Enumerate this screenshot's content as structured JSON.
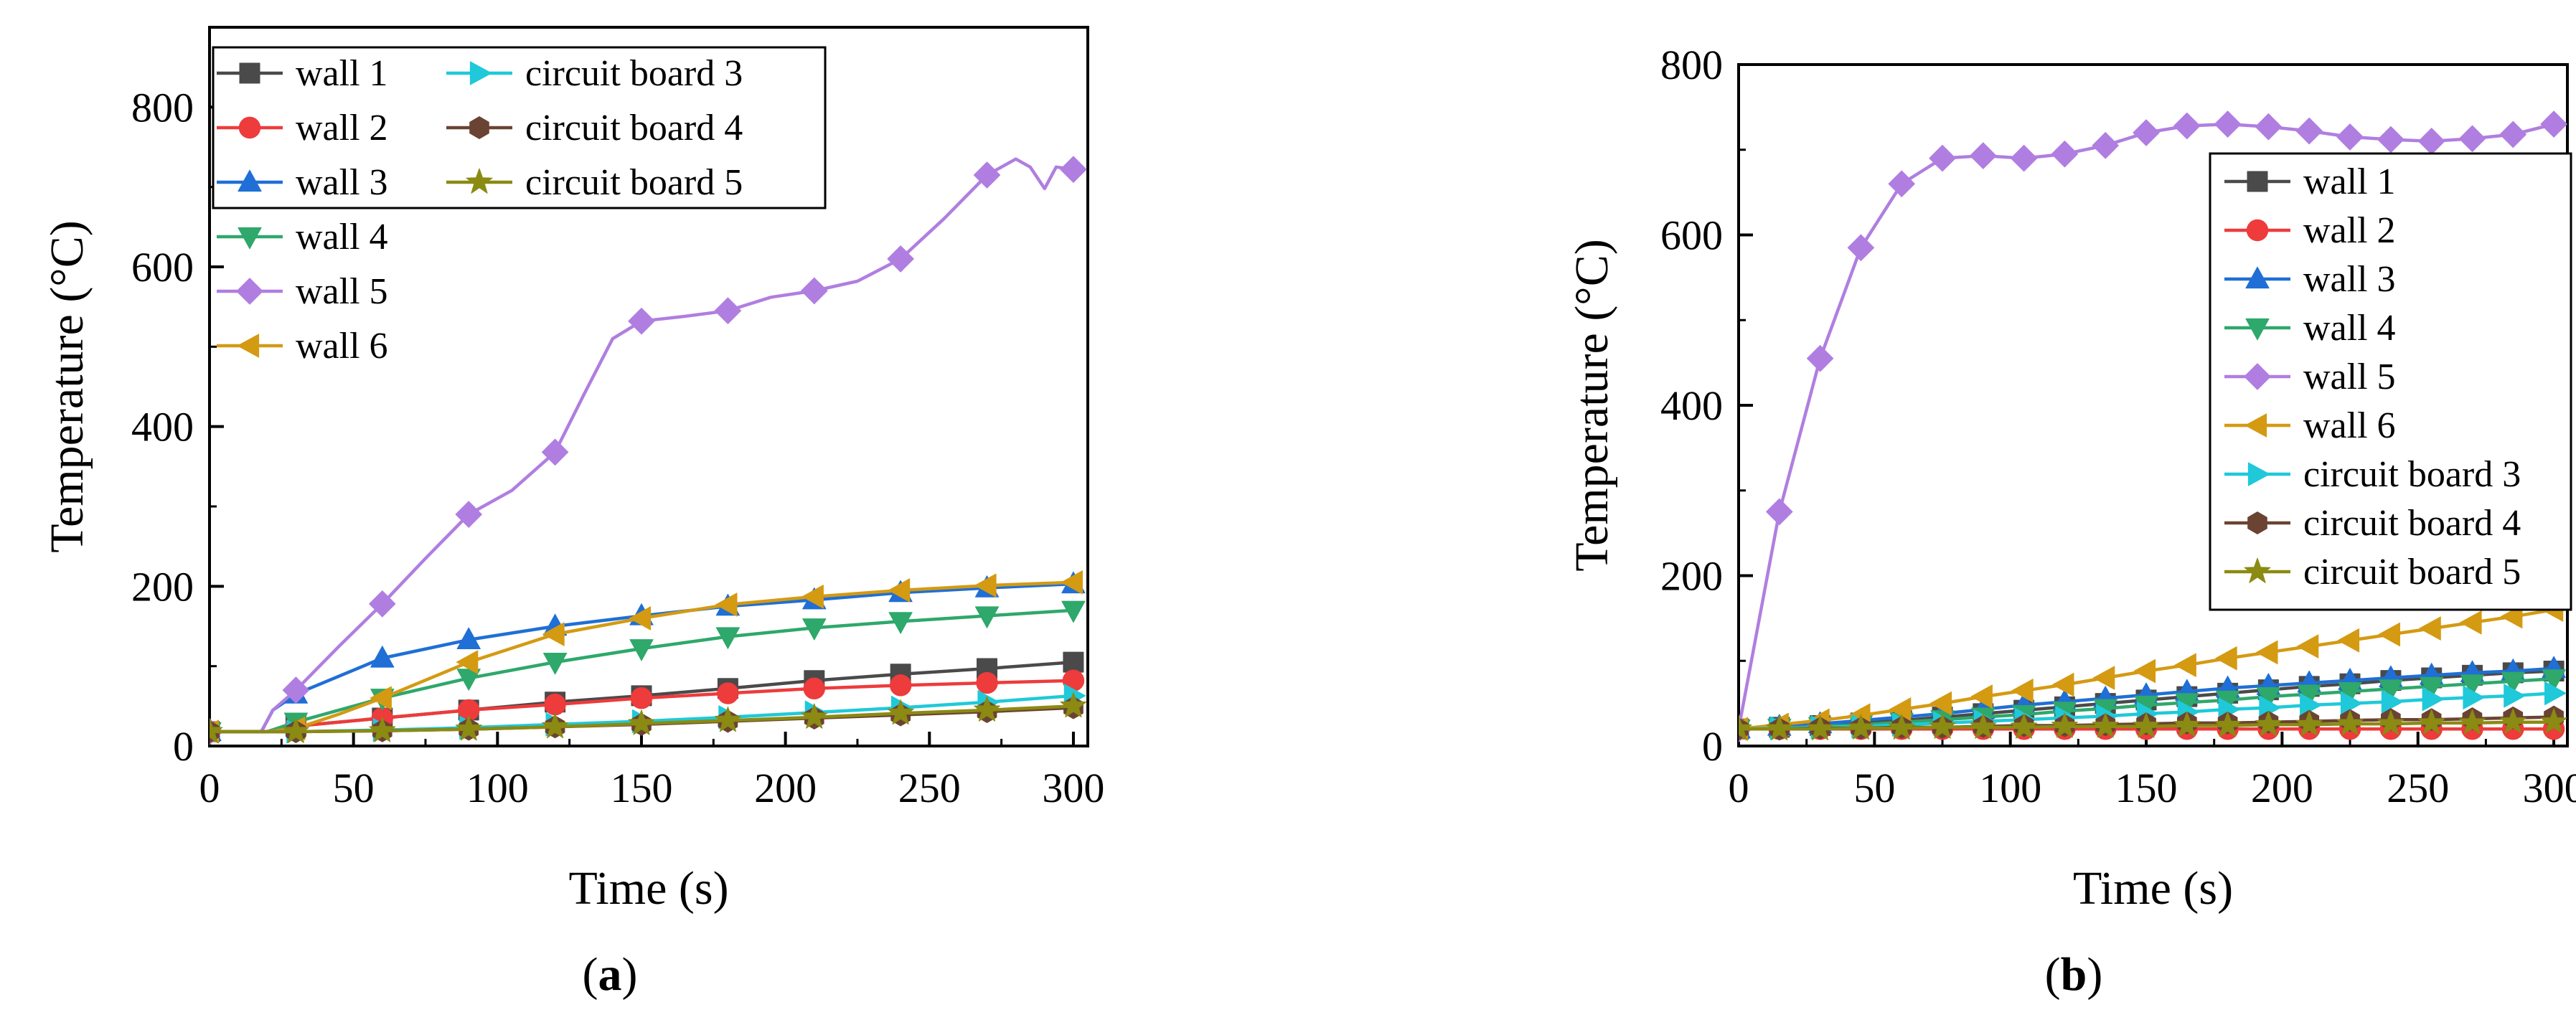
{
  "colors": {
    "wall1": "#4a4a4a",
    "wall2": "#ee3b3b",
    "wall3": "#1f6fd6",
    "wall4": "#2ea86b",
    "wall5": "#b07ee0",
    "wall6": "#d49a12",
    "cb3": "#1fc9d9",
    "cb4": "#6b4332",
    "cb5": "#8b8a12"
  },
  "chart_data": [
    {
      "type": "line",
      "panel_label": "(a)",
      "panel_letter": "a",
      "xlabel": "Time (s)",
      "ylabel": "Temperature (°C)",
      "xlim": [
        0,
        305
      ],
      "ylim": [
        0,
        900
      ],
      "xticks": [
        0,
        50,
        100,
        150,
        200,
        250,
        300
      ],
      "yticks": [
        0,
        200,
        400,
        600,
        800
      ],
      "legend_position": "top-left",
      "legend_columns": 2,
      "series": [
        {
          "name": "wall 1",
          "marker": "square",
          "color_key": "wall1",
          "x": [
            0,
            20,
            30,
            60,
            90,
            120,
            150,
            180,
            210,
            240,
            270,
            300
          ],
          "y": [
            18,
            18,
            25,
            35,
            45,
            55,
            63,
            72,
            82,
            90,
            97,
            105
          ]
        },
        {
          "name": "wall 2",
          "marker": "circle",
          "color_key": "wall2",
          "x": [
            0,
            20,
            30,
            60,
            90,
            120,
            150,
            180,
            210,
            240,
            270,
            300
          ],
          "y": [
            18,
            18,
            25,
            35,
            45,
            52,
            60,
            66,
            72,
            76,
            79,
            82
          ]
        },
        {
          "name": "wall 3",
          "marker": "triangle-up",
          "color_key": "wall3",
          "x": [
            0,
            18,
            22,
            30,
            40,
            60,
            90,
            120,
            150,
            180,
            210,
            240,
            270,
            300
          ],
          "y": [
            18,
            18,
            45,
            65,
            80,
            110,
            133,
            150,
            163,
            175,
            183,
            192,
            198,
            203
          ]
        },
        {
          "name": "wall 4",
          "marker": "triangle-down",
          "color_key": "wall4",
          "x": [
            0,
            20,
            30,
            60,
            90,
            120,
            150,
            180,
            210,
            240,
            270,
            300
          ],
          "y": [
            18,
            18,
            30,
            60,
            85,
            105,
            122,
            137,
            148,
            156,
            163,
            170
          ]
        },
        {
          "name": "wall 5",
          "marker": "diamond",
          "color_key": "wall5",
          "x": [
            0,
            18,
            22,
            30,
            45,
            60,
            75,
            90,
            105,
            120,
            130,
            140,
            150,
            165,
            180,
            195,
            210,
            225,
            240,
            255,
            270,
            280,
            285,
            290,
            294,
            300
          ],
          "y": [
            18,
            18,
            45,
            70,
            125,
            178,
            235,
            290,
            320,
            368,
            440,
            510,
            532,
            538,
            545,
            562,
            570,
            582,
            610,
            660,
            715,
            735,
            725,
            698,
            725,
            722
          ]
        },
        {
          "name": "wall 6",
          "marker": "triangle-left",
          "color_key": "wall6",
          "x": [
            0,
            20,
            30,
            45,
            60,
            90,
            120,
            150,
            180,
            210,
            240,
            270,
            300
          ],
          "y": [
            18,
            18,
            22,
            40,
            60,
            105,
            140,
            160,
            177,
            187,
            195,
            201,
            205
          ]
        },
        {
          "name": "circuit board 3",
          "marker": "triangle-right",
          "color_key": "cb3",
          "x": [
            0,
            30,
            60,
            90,
            120,
            150,
            180,
            210,
            240,
            270,
            300
          ],
          "y": [
            18,
            18,
            20,
            23,
            27,
            31,
            36,
            42,
            48,
            55,
            63
          ]
        },
        {
          "name": "circuit board 4",
          "marker": "hexagon",
          "color_key": "cb4",
          "x": [
            0,
            30,
            60,
            90,
            120,
            150,
            180,
            210,
            240,
            270,
            300
          ],
          "y": [
            18,
            18,
            19,
            21,
            24,
            27,
            31,
            35,
            39,
            43,
            48
          ]
        },
        {
          "name": "circuit board 5",
          "marker": "star",
          "color_key": "cb5",
          "x": [
            0,
            30,
            60,
            90,
            120,
            150,
            180,
            210,
            240,
            270,
            300
          ],
          "y": [
            18,
            18,
            19,
            21,
            24,
            28,
            32,
            36,
            41,
            45,
            50
          ]
        }
      ]
    },
    {
      "type": "line",
      "panel_label": "(b)",
      "panel_letter": "b",
      "xlabel": "Time (s)",
      "ylabel": "Temperature (°C)",
      "xlim": [
        0,
        305
      ],
      "ylim": [
        0,
        800
      ],
      "xticks": [
        0,
        50,
        100,
        150,
        200,
        250,
        300
      ],
      "yticks": [
        0,
        200,
        400,
        600,
        800
      ],
      "legend_position": "right",
      "legend_columns": 1,
      "series": [
        {
          "name": "wall 1",
          "marker": "square",
          "color_key": "wall1",
          "x": [
            0,
            15,
            30,
            45,
            60,
            75,
            90,
            105,
            120,
            135,
            150,
            165,
            180,
            195,
            210,
            225,
            240,
            255,
            270,
            285,
            300
          ],
          "y": [
            20,
            22,
            24,
            27,
            30,
            34,
            38,
            42,
            46,
            50,
            54,
            58,
            62,
            66,
            70,
            73,
            77,
            80,
            83,
            86,
            88
          ]
        },
        {
          "name": "wall 2",
          "marker": "circle",
          "color_key": "wall2",
          "x": [
            0,
            15,
            30,
            45,
            60,
            75,
            90,
            105,
            120,
            135,
            150,
            165,
            180,
            195,
            210,
            225,
            240,
            255,
            270,
            285,
            300
          ],
          "y": [
            20,
            20,
            20,
            20,
            20,
            20,
            20,
            20,
            20,
            20,
            20,
            20,
            20,
            20,
            20,
            20,
            20,
            20,
            20,
            20,
            20
          ]
        },
        {
          "name": "wall 3",
          "marker": "triangle-up",
          "color_key": "wall3",
          "x": [
            0,
            15,
            30,
            45,
            60,
            75,
            90,
            105,
            120,
            135,
            150,
            165,
            180,
            195,
            210,
            225,
            240,
            255,
            270,
            285,
            300
          ],
          "y": [
            20,
            23,
            26,
            30,
            34,
            38,
            43,
            48,
            52,
            56,
            60,
            64,
            68,
            71,
            74,
            77,
            80,
            83,
            86,
            88,
            91
          ]
        },
        {
          "name": "wall 4",
          "marker": "triangle-down",
          "color_key": "wall4",
          "x": [
            0,
            15,
            30,
            45,
            60,
            75,
            90,
            105,
            120,
            135,
            150,
            165,
            180,
            195,
            210,
            225,
            240,
            255,
            270,
            285,
            300
          ],
          "y": [
            20,
            21,
            23,
            25,
            28,
            31,
            34,
            37,
            41,
            44,
            48,
            51,
            54,
            58,
            61,
            64,
            67,
            70,
            73,
            76,
            79
          ]
        },
        {
          "name": "wall 5",
          "marker": "diamond",
          "color_key": "wall5",
          "x": [
            0,
            15,
            30,
            45,
            60,
            75,
            90,
            105,
            120,
            135,
            150,
            165,
            180,
            195,
            210,
            225,
            240,
            255,
            270,
            285,
            300
          ],
          "y": [
            20,
            275,
            455,
            585,
            660,
            690,
            693,
            690,
            695,
            705,
            720,
            728,
            730,
            727,
            722,
            715,
            712,
            710,
            713,
            718,
            730
          ]
        },
        {
          "name": "wall 6",
          "marker": "triangle-left",
          "color_key": "wall6",
          "x": [
            0,
            15,
            30,
            45,
            60,
            75,
            90,
            105,
            120,
            135,
            150,
            165,
            180,
            195,
            210,
            225,
            240,
            255,
            270,
            285,
            300
          ],
          "y": [
            20,
            25,
            30,
            36,
            43,
            50,
            58,
            65,
            72,
            80,
            88,
            95,
            103,
            110,
            117,
            124,
            131,
            138,
            145,
            152,
            160
          ]
        },
        {
          "name": "circuit board 3",
          "marker": "triangle-right",
          "color_key": "cb3",
          "x": [
            0,
            15,
            30,
            45,
            60,
            75,
            90,
            105,
            120,
            135,
            150,
            165,
            180,
            195,
            210,
            225,
            240,
            255,
            270,
            285,
            300
          ],
          "y": [
            20,
            21,
            22,
            23,
            25,
            27,
            29,
            31,
            33,
            35,
            38,
            40,
            43,
            45,
            48,
            50,
            52,
            55,
            57,
            59,
            62
          ]
        },
        {
          "name": "circuit board 4",
          "marker": "hexagon",
          "color_key": "cb4",
          "x": [
            0,
            15,
            30,
            45,
            60,
            75,
            90,
            105,
            120,
            135,
            150,
            165,
            180,
            195,
            210,
            225,
            240,
            255,
            270,
            285,
            300
          ],
          "y": [
            20,
            20,
            21,
            21,
            22,
            22,
            23,
            24,
            24,
            25,
            26,
            27,
            27,
            28,
            29,
            30,
            31,
            31,
            32,
            33,
            34
          ]
        },
        {
          "name": "circuit board 5",
          "marker": "star",
          "color_key": "cb5",
          "x": [
            0,
            15,
            30,
            45,
            60,
            75,
            90,
            105,
            120,
            135,
            150,
            165,
            180,
            195,
            210,
            225,
            240,
            255,
            270,
            285,
            300
          ],
          "y": [
            20,
            20,
            20,
            21,
            21,
            22,
            22,
            22,
            23,
            23,
            23,
            24,
            24,
            25,
            25,
            26,
            26,
            27,
            27,
            28,
            28
          ]
        }
      ]
    }
  ]
}
